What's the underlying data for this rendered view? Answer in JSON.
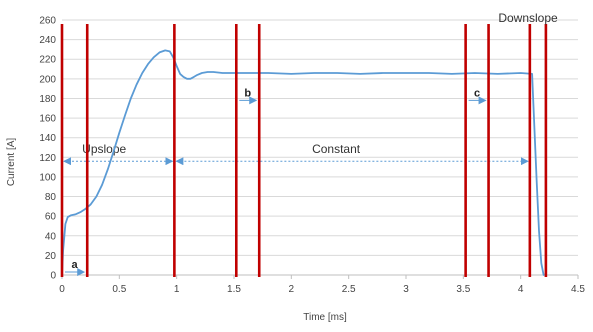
{
  "chart_data": {
    "type": "line",
    "xlabel": "Time [ms]",
    "ylabel": "Current [A]",
    "xlim": [
      0,
      4.5
    ],
    "ylim": [
      0,
      260
    ],
    "x_ticks": [
      0,
      0.5,
      1,
      1.5,
      2,
      2.5,
      3,
      3.5,
      4,
      4.5
    ],
    "x_tick_labels": [
      "0",
      "0.5",
      "1",
      "1.5",
      "2",
      "2.5",
      "3",
      "3.5",
      "4",
      "4.5"
    ],
    "y_ticks": [
      0,
      20,
      40,
      60,
      80,
      100,
      120,
      140,
      160,
      180,
      200,
      220,
      240,
      260
    ],
    "y_tick_labels": [
      "0",
      "20",
      "40",
      "60",
      "80",
      "100",
      "120",
      "140",
      "160",
      "180",
      "200",
      "220",
      "240",
      "260"
    ],
    "grid": true,
    "series": [
      {
        "color": "#5b9bd5",
        "x": [
          0,
          0.01,
          0.03,
          0.05,
          0.08,
          0.12,
          0.16,
          0.2,
          0.25,
          0.3,
          0.35,
          0.4,
          0.45,
          0.5,
          0.55,
          0.6,
          0.65,
          0.7,
          0.75,
          0.8,
          0.85,
          0.9,
          0.94,
          0.97,
          1.0,
          1.03,
          1.06,
          1.09,
          1.12,
          1.15,
          1.18,
          1.22,
          1.27,
          1.32,
          1.4,
          1.5,
          1.6,
          1.8,
          2.0,
          2.2,
          2.4,
          2.6,
          2.8,
          3.0,
          3.2,
          3.4,
          3.6,
          3.8,
          4.0,
          4.1,
          4.12,
          4.14,
          4.16,
          4.18,
          4.2
        ],
        "y": [
          0,
          25,
          52,
          59,
          61,
          62,
          64,
          67,
          72,
          80,
          92,
          108,
          126,
          145,
          163,
          180,
          194,
          206,
          215,
          222,
          227,
          229,
          228,
          222,
          213,
          205,
          202,
          200,
          200,
          202,
          204,
          206,
          207,
          207,
          206,
          206,
          206,
          206,
          205,
          206,
          206,
          205,
          206,
          206,
          206,
          205,
          206,
          205,
          206,
          205,
          150,
          95,
          45,
          12,
          0
        ]
      }
    ],
    "vertical_markers": [
      {
        "x": 0.0,
        "color": "#c00000"
      },
      {
        "x": 0.22,
        "color": "#c00000"
      },
      {
        "x": 0.98,
        "color": "#c00000"
      },
      {
        "x": 1.52,
        "color": "#c00000"
      },
      {
        "x": 1.72,
        "color": "#c00000"
      },
      {
        "x": 3.52,
        "color": "#c00000"
      },
      {
        "x": 3.72,
        "color": "#c00000"
      },
      {
        "x": 4.08,
        "color": "#c00000"
      },
      {
        "x": 4.22,
        "color": "#c00000"
      }
    ],
    "region_arrows": [
      {
        "label": "Upslope",
        "x_start": 0.0,
        "x_end": 0.98,
        "y": 116
      },
      {
        "label": "Constant",
        "x_start": 0.98,
        "x_end": 4.08,
        "y": 116
      }
    ],
    "interval_markers": [
      {
        "label": "a",
        "x_start": 0.0,
        "x_end": 0.22,
        "y": 3
      },
      {
        "label": "b",
        "x_start": 1.52,
        "x_end": 1.72,
        "y": 178
      },
      {
        "label": "c",
        "x_start": 3.52,
        "x_end": 3.72,
        "y": 178
      }
    ],
    "annotations": [
      {
        "text": "Downslope"
      }
    ]
  }
}
